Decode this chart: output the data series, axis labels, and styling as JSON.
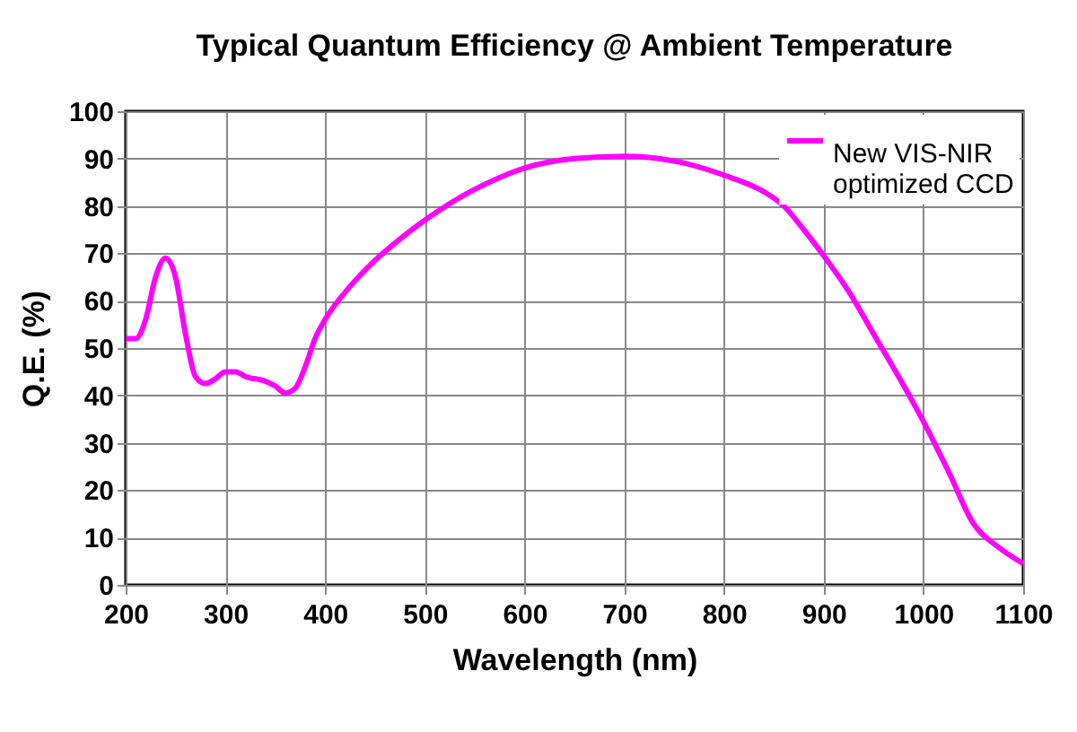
{
  "chart_data": {
    "type": "line",
    "title": "Typical Quantum Efficiency @ Ambient Temperature",
    "xlabel": "Wavelength (nm)",
    "ylabel": "Q.E. (%)",
    "x": [
      200,
      210,
      220,
      230,
      240,
      250,
      260,
      270,
      280,
      290,
      300,
      310,
      320,
      340,
      350,
      360,
      370,
      380,
      390,
      400,
      425,
      450,
      475,
      500,
      525,
      550,
      575,
      600,
      650,
      700,
      750,
      800,
      840,
      860,
      880,
      900,
      925,
      950,
      975,
      1000,
      1025,
      1050,
      1075,
      1100
    ],
    "series": [
      {
        "name": "New VIS-NIR optimized CCD",
        "color": "#ff00ff",
        "values": [
          52,
          52,
          56,
          65,
          69,
          65,
          53,
          44,
          42.5,
          43.5,
          45,
          45,
          44,
          43,
          42,
          40.5,
          41.5,
          46,
          52,
          56,
          63,
          68.5,
          73,
          77,
          80.5,
          83.5,
          86,
          88,
          90,
          90.5,
          89.5,
          86.5,
          83,
          80,
          75,
          69.5,
          62,
          53,
          44,
          34.5,
          24,
          13,
          8,
          4.5
        ]
      }
    ],
    "xlim": [
      200,
      1100
    ],
    "xticks": [
      200,
      300,
      400,
      500,
      600,
      700,
      800,
      900,
      1000,
      1100
    ],
    "ylim": [
      0,
      100
    ],
    "yticks": [
      0,
      10,
      20,
      30,
      40,
      50,
      60,
      70,
      80,
      90,
      100
    ],
    "grid": true,
    "legend": "top right",
    "marker": "none",
    "line_style": "solid"
  }
}
